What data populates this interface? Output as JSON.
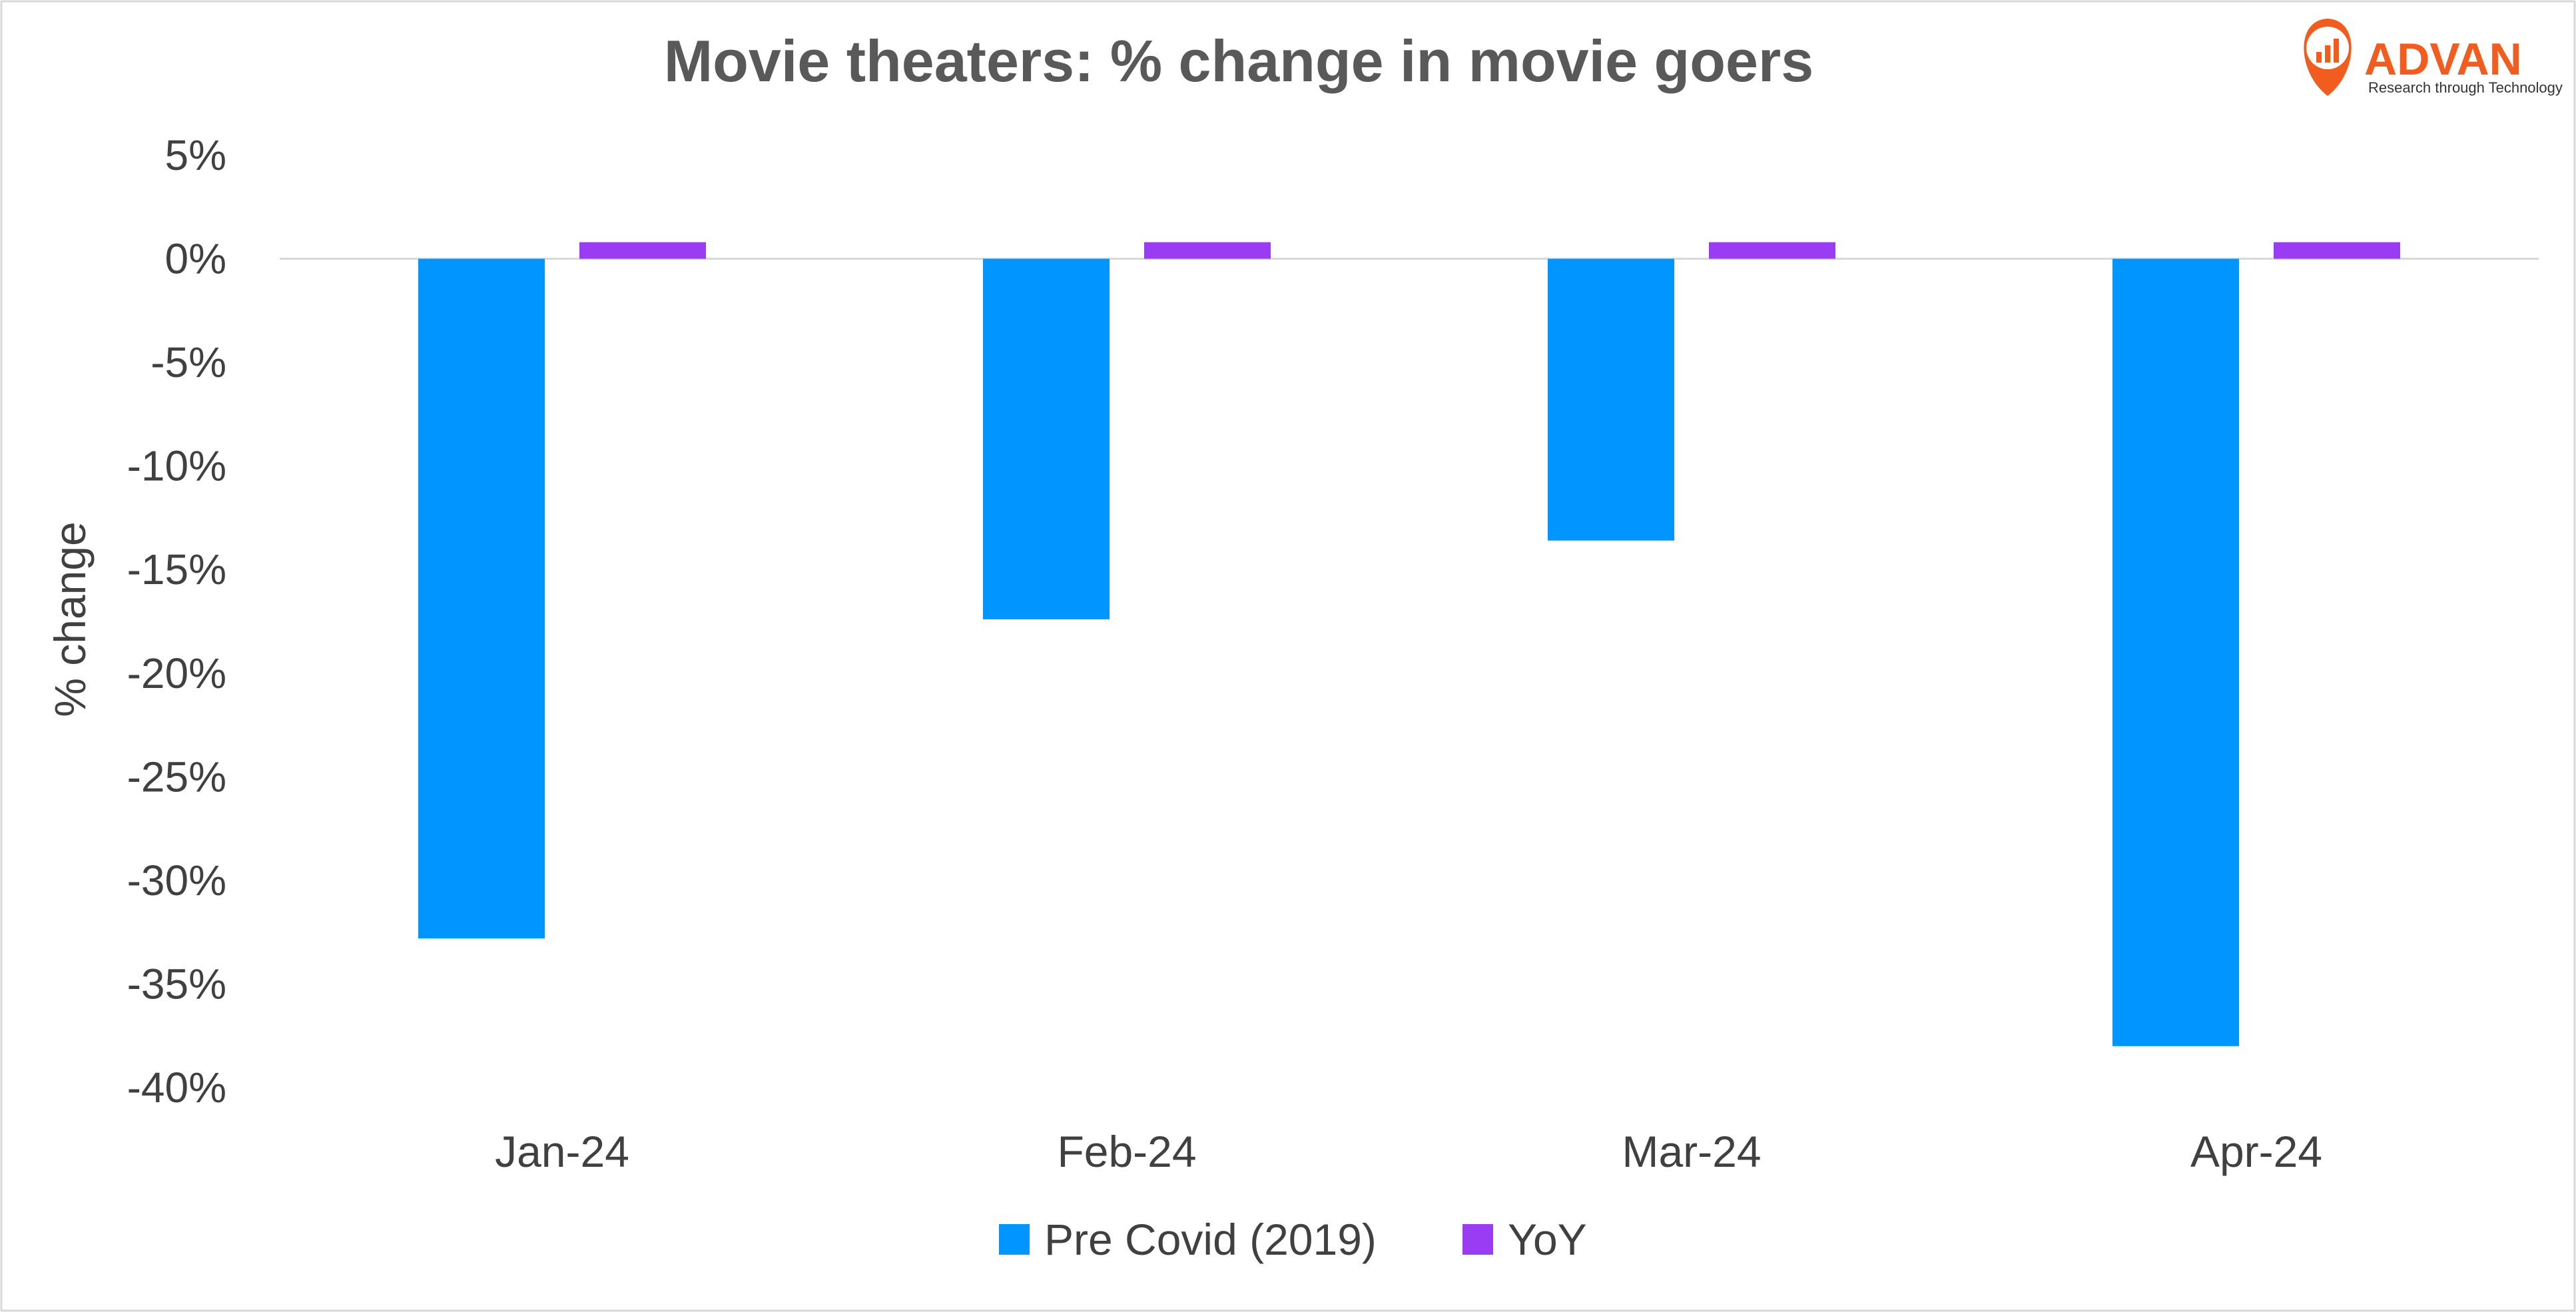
{
  "colors": {
    "pre_covid": "#0095FF",
    "yoy": "#9B3CF5",
    "brand": "#F25C1F",
    "zero_line": "#D9D9D9",
    "frame": "#D9D9D9"
  },
  "logo": {
    "name": "ADVAN",
    "tagline": "Research through Technology",
    "icon": "map-pin-chart-icon"
  },
  "chart_data": {
    "type": "bar",
    "title": "Movie theaters: % change in movie goers",
    "xlabel": "",
    "ylabel": "% change",
    "ylim": [
      -40,
      5
    ],
    "ytick_step": 5,
    "yticks": [
      "5%",
      "0%",
      "-5%",
      "-10%",
      "-15%",
      "-20%",
      "-25%",
      "-30%",
      "-35%",
      "-40%"
    ],
    "grid": false,
    "categories": [
      "Jan-24",
      "Feb-24",
      "Mar-24",
      "Apr-24"
    ],
    "series": [
      {
        "name": "Pre Covid (2019)",
        "color_key": "pre_covid",
        "values": [
          -32.8,
          -17.4,
          -13.6,
          -38.0
        ]
      },
      {
        "name": "YoY",
        "color_key": "yoy",
        "values": [
          0.8,
          0.8,
          0.8,
          0.8
        ]
      }
    ],
    "legend_position": "bottom"
  }
}
